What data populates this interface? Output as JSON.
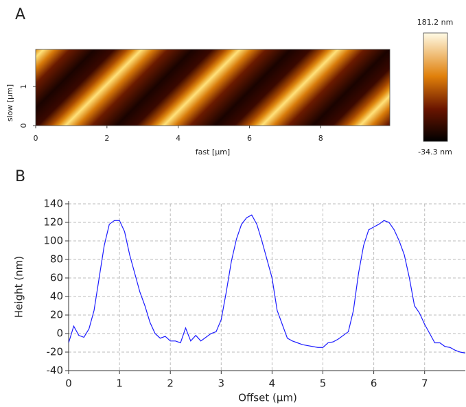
{
  "chart_data": [
    {
      "type": "image",
      "label": "A",
      "xlabel": "fast [µm]",
      "ylabel": "slow [µm]",
      "xlim": [
        0,
        9.94
      ],
      "xticks": [
        0,
        2,
        4,
        6,
        8
      ],
      "ylim": [
        0,
        1.95
      ],
      "yticks": [
        0,
        1
      ],
      "colorbar_labels": [
        "181.2 nm",
        "-34.3 nm"
      ]
    },
    {
      "type": "line",
      "label": "B",
      "xlabel": "Offset (µm)",
      "ylabel": "Height (nm)",
      "xlim": [
        0,
        7.8
      ],
      "xticks": [
        0,
        1,
        2,
        3,
        4,
        5,
        6,
        7
      ],
      "ylim": [
        -40,
        140
      ],
      "yticks": [
        -40,
        -20,
        0,
        20,
        40,
        60,
        80,
        100,
        120,
        140
      ],
      "grid": true,
      "x": [
        0,
        0.1,
        0.2,
        0.3,
        0.4,
        0.5,
        0.6,
        0.7,
        0.8,
        0.9,
        1.0,
        1.1,
        1.2,
        1.3,
        1.4,
        1.5,
        1.6,
        1.7,
        1.8,
        1.9,
        2.0,
        2.1,
        2.2,
        2.3,
        2.4,
        2.5,
        2.6,
        2.7,
        2.8,
        2.9,
        3.0,
        3.1,
        3.2,
        3.3,
        3.4,
        3.5,
        3.6,
        3.7,
        3.8,
        3.9,
        4.0,
        4.1,
        4.2,
        4.3,
        4.4,
        4.5,
        4.6,
        4.7,
        4.8,
        4.9,
        5.0,
        5.1,
        5.2,
        5.3,
        5.4,
        5.5,
        5.6,
        5.7,
        5.8,
        5.9,
        6.0,
        6.1,
        6.2,
        6.3,
        6.4,
        6.5,
        6.6,
        6.7,
        6.8,
        6.9,
        7.0,
        7.1,
        7.2,
        7.3,
        7.4,
        7.5,
        7.6,
        7.7,
        7.8
      ],
      "series": [
        {
          "color": "#1c1cff",
          "values": [
            -10,
            8,
            -2,
            -4,
            5,
            25,
            60,
            95,
            118,
            122,
            122,
            110,
            85,
            65,
            45,
            30,
            12,
            0,
            -5,
            -3,
            -8,
            -8,
            -10,
            6,
            -8,
            -2,
            -8,
            -4,
            0,
            2,
            15,
            45,
            78,
            102,
            118,
            125,
            128,
            118,
            100,
            80,
            60,
            25,
            10,
            -5,
            -8,
            -10,
            -12,
            -13,
            -14,
            -15,
            -15,
            -10,
            -9,
            -6,
            -2,
            2,
            25,
            65,
            95,
            112,
            115,
            118,
            122,
            120,
            112,
            100,
            85,
            60,
            30,
            22,
            10,
            0,
            -10,
            -10,
            -14,
            -15,
            -18,
            -20,
            -21
          ]
        }
      ]
    }
  ]
}
